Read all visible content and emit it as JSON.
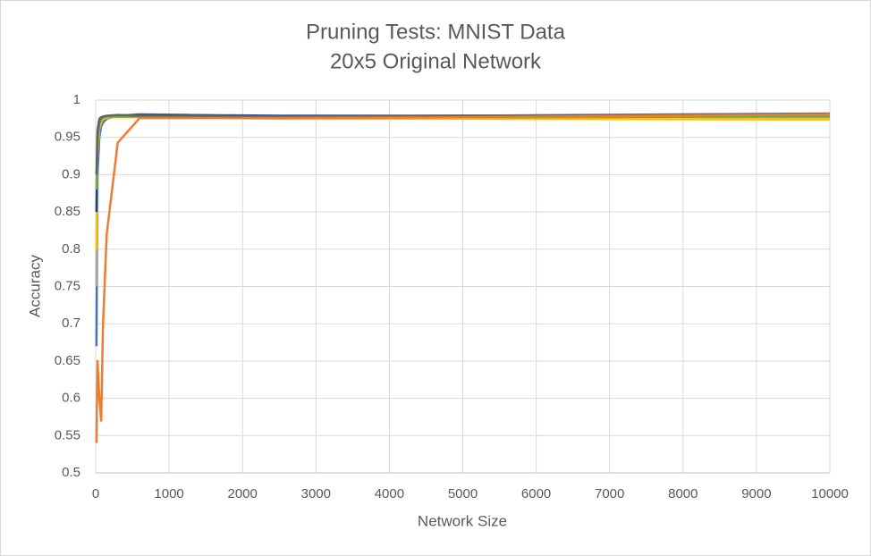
{
  "chart_data": {
    "type": "line",
    "title": "Pruning Tests: MNIST Data",
    "subtitle": "20x5 Original Network",
    "x_label": "Network Size",
    "y_label": "Accuracy",
    "x": [
      10,
      25,
      50,
      75,
      100,
      150,
      300,
      600,
      1200,
      2500,
      5000,
      10000
    ],
    "series": [
      {
        "color": "#4472c4",
        "values": [
          0.67,
          0.9,
          0.95,
          0.965,
          0.97,
          0.975,
          0.979,
          0.981,
          0.98,
          0.978,
          0.979,
          0.979
        ]
      },
      {
        "color": "#a5a5a5",
        "values": [
          0.75,
          0.93,
          0.96,
          0.97,
          0.974,
          0.976,
          0.978,
          0.979,
          0.979,
          0.977,
          0.978,
          0.977
        ]
      },
      {
        "color": "#ffc000",
        "values": [
          0.8,
          0.94,
          0.965,
          0.972,
          0.975,
          0.977,
          0.977,
          0.977,
          0.977,
          0.975,
          0.975,
          0.974
        ]
      },
      {
        "color": "#264478",
        "values": [
          0.85,
          0.95,
          0.97,
          0.975,
          0.977,
          0.978,
          0.979,
          0.98,
          0.98,
          0.979,
          0.979,
          0.98
        ]
      },
      {
        "color": "#70ad47",
        "values": [
          0.88,
          0.955,
          0.972,
          0.976,
          0.977,
          0.978,
          0.978,
          0.978,
          0.978,
          0.977,
          0.977,
          0.978
        ]
      },
      {
        "color": "#636363",
        "values": [
          0.9,
          0.96,
          0.975,
          0.977,
          0.978,
          0.979,
          0.98,
          0.979,
          0.979,
          0.978,
          0.979,
          0.982
        ]
      },
      {
        "color": "#ed7d31",
        "values": [
          0.54,
          0.65,
          0.6,
          0.57,
          0.7,
          0.82,
          0.943,
          0.976,
          0.976,
          0.976,
          0.977,
          0.981
        ]
      }
    ],
    "xlim": [
      0,
      10000
    ],
    "xticks": [
      0,
      1000,
      2000,
      3000,
      4000,
      5000,
      6000,
      7000,
      8000,
      9000,
      10000
    ],
    "ylim": [
      0.5,
      1
    ],
    "yticks": [
      0.5,
      0.55,
      0.6,
      0.65,
      0.7,
      0.75,
      0.8,
      0.85,
      0.9,
      0.95,
      1
    ],
    "grid": true
  }
}
